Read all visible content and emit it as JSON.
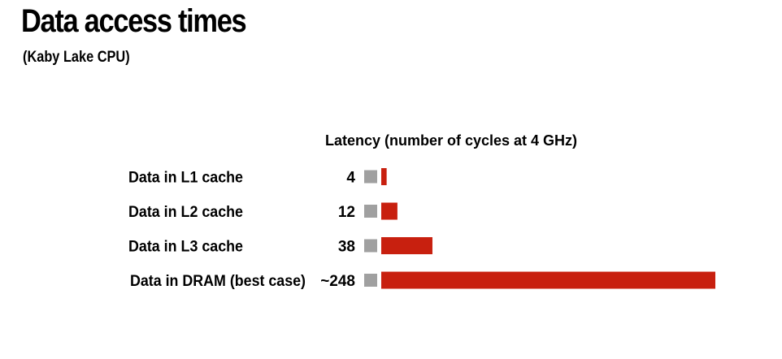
{
  "slide": {
    "title": "Data access times",
    "subtitle": "(Kaby Lake CPU)"
  },
  "chart_data": {
    "type": "bar",
    "orientation": "horizontal",
    "title": "",
    "ylabel": "Latency (number of cycles at 4 GHz)",
    "categories": [
      "Data in L1 cache",
      "Data in L2 cache",
      "Data in L3 cache",
      "Data in DRAM (best case)"
    ],
    "value_labels": [
      "4",
      "12",
      "38",
      "~248"
    ],
    "values": [
      4,
      12,
      38,
      248
    ],
    "xlim": [
      0,
      248
    ],
    "grid": false,
    "legend": "none",
    "colors": {
      "bar": "#c8200f",
      "marker": "#a0a0a0"
    }
  }
}
